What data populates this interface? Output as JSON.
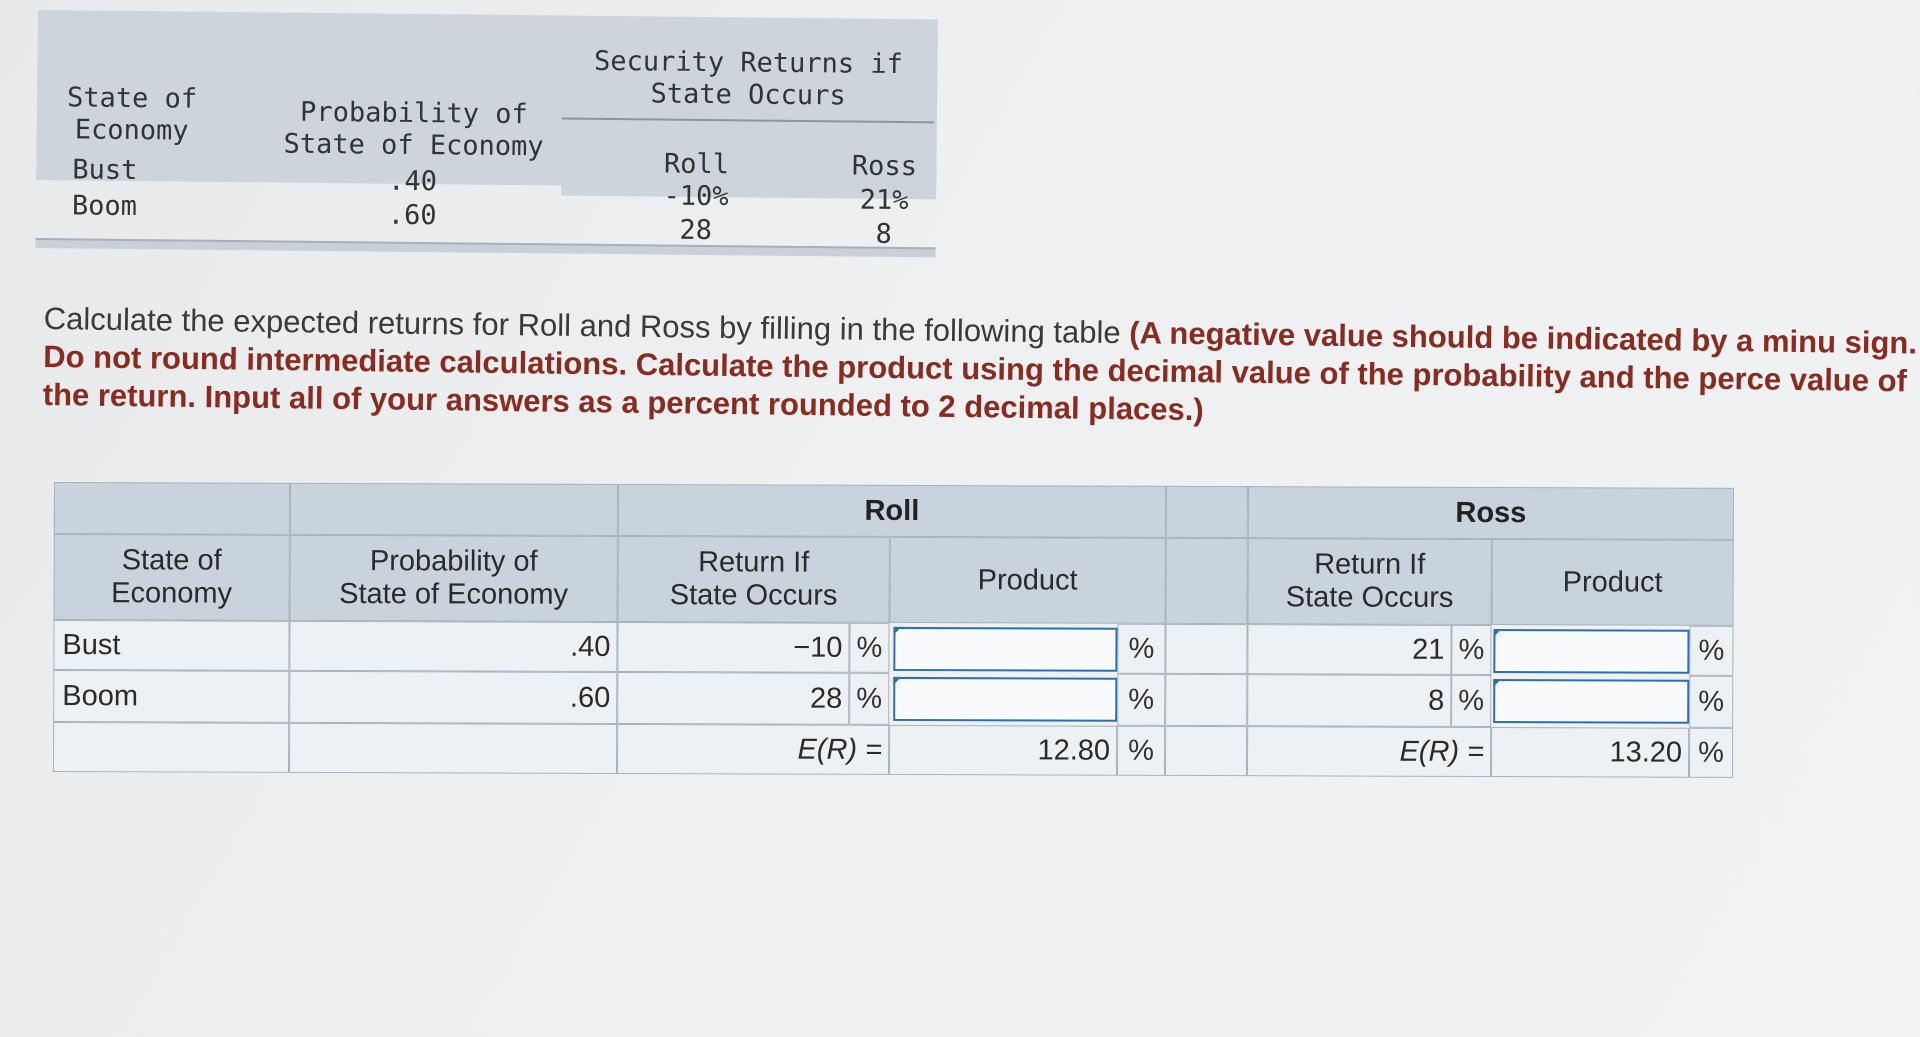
{
  "given_table": {
    "header_group": "Security Returns if\nState Occurs",
    "col_state": "State of\nEconomy",
    "col_prob": "Probability of\nState of Economy",
    "col_roll": "Roll",
    "col_ross": "Ross",
    "rows": [
      {
        "state": "Bust",
        "prob": ".40",
        "roll": "-10%",
        "ross": "21%"
      },
      {
        "state": "Boom",
        "prob": ".60",
        "roll": "28",
        "ross": "8"
      }
    ]
  },
  "instructions": {
    "lead": "Calculate the expected returns for Roll and Ross by filling in the following table ",
    "bold": "(A negative value should be indicated by a minu sign. Do not round intermediate calculations. Calculate the product using the decimal value of the probability and the perce value of the return. Input all of your answers as a percent rounded to 2 decimal places.)"
  },
  "answer_table": {
    "group_roll": "Roll",
    "group_ross": "Ross",
    "col_state": "State of\nEconomy",
    "col_prob": "Probability of\nState of Economy",
    "col_return": "Return If\nState Occurs",
    "col_product": "Product",
    "percent_sign": "%",
    "er_label": "E(R) =",
    "rows": [
      {
        "state": "Bust",
        "prob": ".40",
        "roll_return": "−10",
        "roll_product": "",
        "ross_return": "21",
        "ross_product": ""
      },
      {
        "state": "Boom",
        "prob": ".60",
        "roll_return": "28",
        "roll_product": "",
        "ross_return": "8",
        "ross_product": ""
      }
    ],
    "roll_er": "12.80",
    "ross_er": "13.20"
  }
}
